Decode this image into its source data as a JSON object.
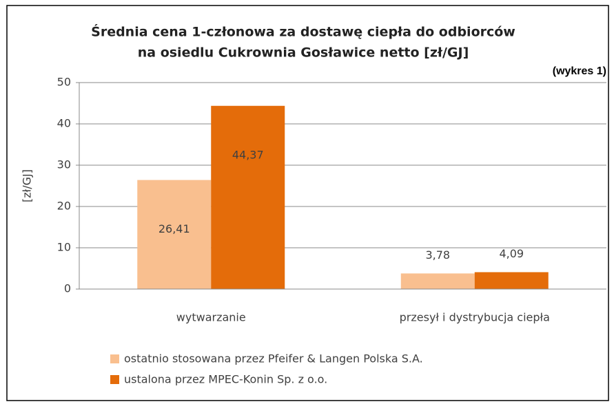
{
  "chart_data": {
    "type": "bar",
    "title": [
      "Średnia cena 1-członowa za dostawę ciepła do odbiorców",
      "na osiedlu Cukrownia Gosławice netto  [zł/GJ]"
    ],
    "annotation": "(wykres 1)",
    "y_label": "[zł/GJ]",
    "categories": [
      "wytwarzanie",
      "przesył i dystrybucja ciepła"
    ],
    "series": [
      {
        "name": "ostatnio stosowana przez Pfeifer & Langen Polska S.A.",
        "color": "#f9bf8f",
        "values": [
          26.41,
          3.78
        ],
        "value_labels": [
          "26,41",
          "3,78"
        ]
      },
      {
        "name": "ustalona przez MPEC-Konin Sp. z o.o.",
        "color": "#e46c0a",
        "values": [
          44.37,
          4.09
        ],
        "value_labels": [
          "44,37",
          "4,09"
        ]
      }
    ],
    "ylim": [
      0,
      50
    ],
    "yticks": [
      0,
      10,
      20,
      30,
      40,
      50
    ],
    "grid": true
  }
}
